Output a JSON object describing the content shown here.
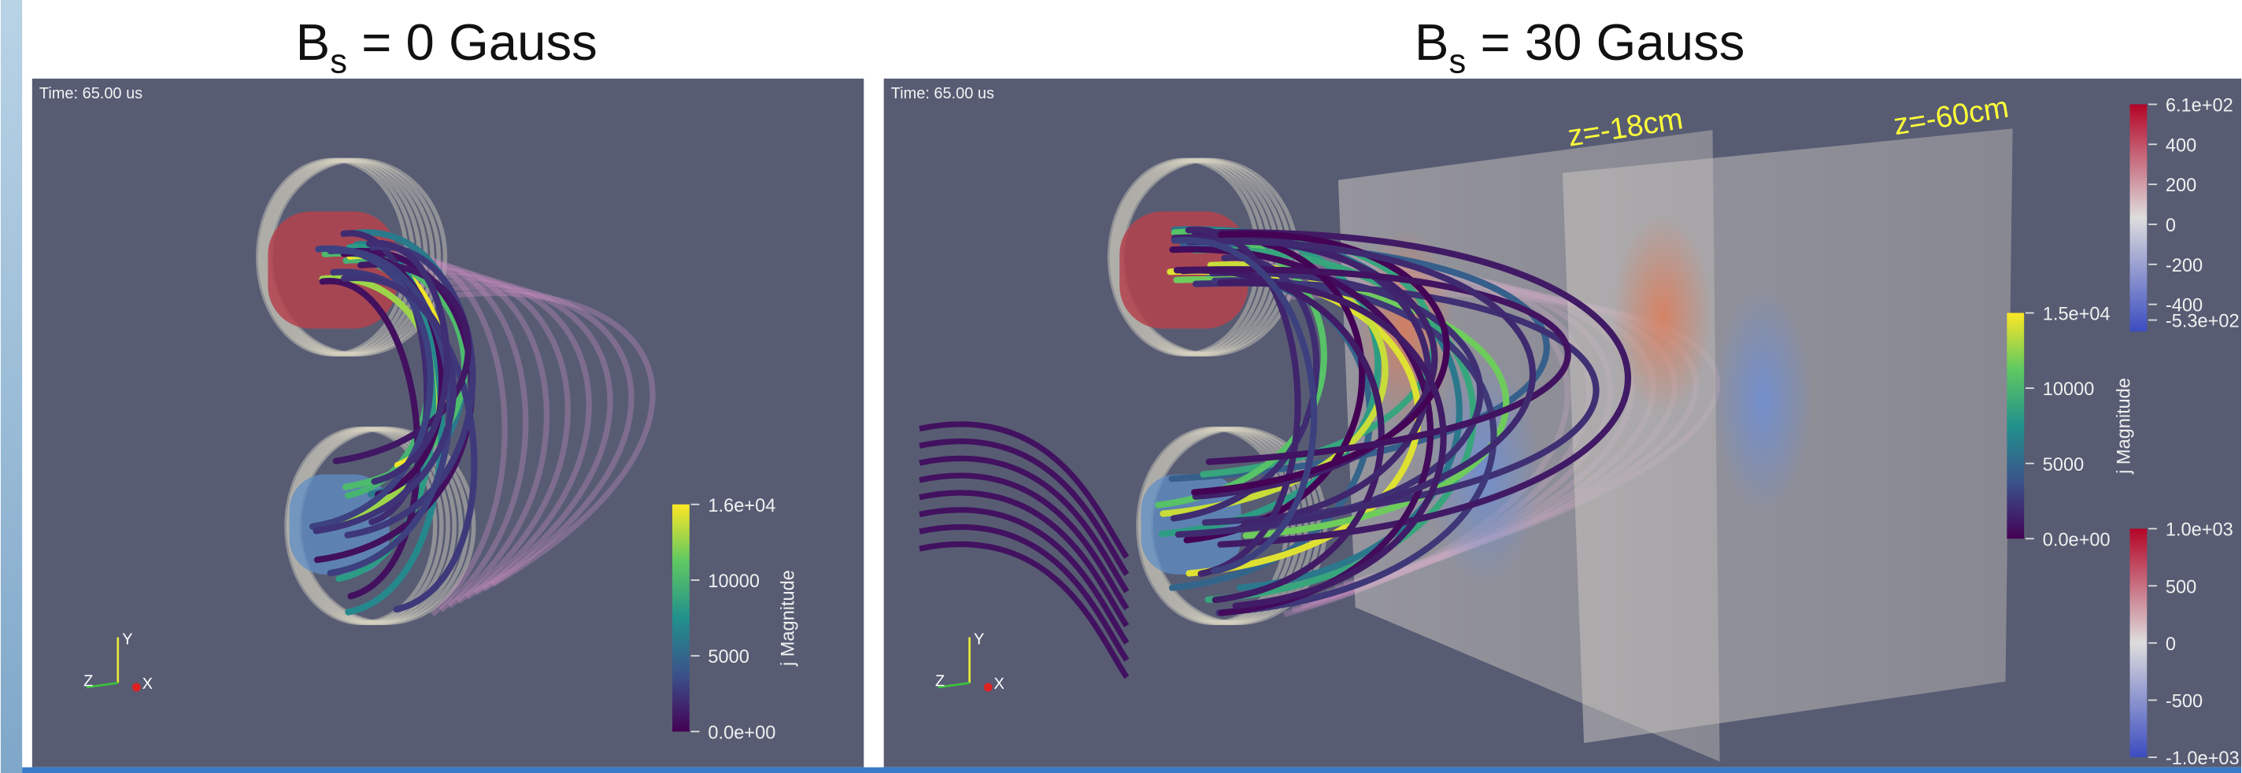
{
  "panels": [
    {
      "title": {
        "prefix": "B",
        "subscript": "s",
        "suffix": " = 0 Gauss"
      },
      "time": "Time: 65.00 us",
      "axes": [
        "Y",
        "Z",
        "X"
      ],
      "colorbars": [
        {
          "title": "j Magnitude",
          "ticks": [
            "1.6e+04",
            "10000",
            "5000",
            "0.0e+00"
          ]
        }
      ]
    },
    {
      "title": {
        "prefix": "B",
        "subscript": "s",
        "suffix": " = 30 Gauss"
      },
      "time": "Time: 65.00 us",
      "axes": [
        "Y",
        "Z",
        "X"
      ],
      "annotations": [
        "z=-18cm",
        "z=-60cm"
      ],
      "colorbars": [
        {
          "title": "j Magnitude",
          "ticks": [
            "1.5e+04",
            "10000",
            "5000",
            "0.0e+00"
          ]
        },
        {
          "ticks": [
            "6.1e+02",
            "400",
            "200",
            "0",
            "-200",
            "-400",
            "-5.3e+02"
          ]
        },
        {
          "ticks": [
            "1.0e+03",
            "500",
            "0",
            "-500",
            "-1.0e+03"
          ]
        }
      ]
    }
  ]
}
